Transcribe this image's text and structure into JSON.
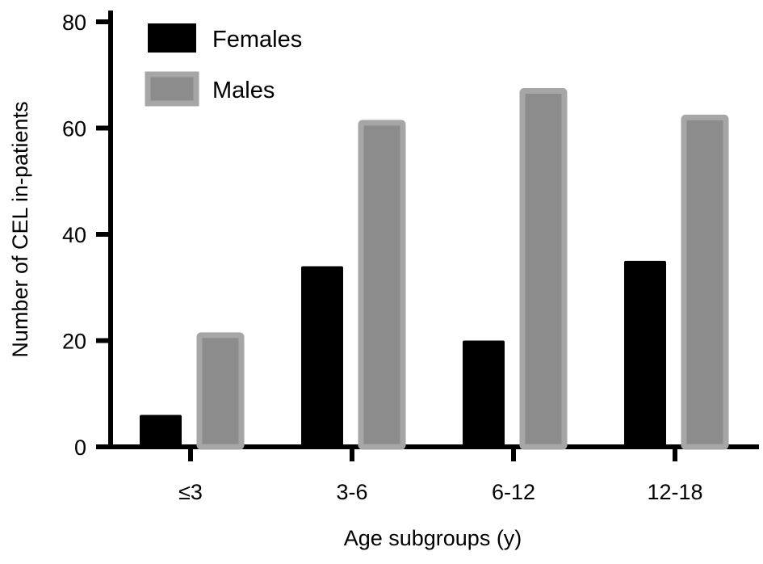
{
  "chart_data": {
    "type": "bar",
    "title": "",
    "xlabel": "Age subgroups (y)",
    "ylabel": "Number of CEL in-patients",
    "categories": [
      "≤3",
      "3-6",
      "6-12",
      "12-18"
    ],
    "series": [
      {
        "name": "Females",
        "values": [
          6,
          34,
          20,
          35
        ],
        "color": "#000000",
        "edge": "#000000"
      },
      {
        "name": "Males",
        "values": [
          21,
          61,
          67,
          62
        ],
        "color": "#8c8c8c",
        "edge": "#a6a6a6"
      }
    ],
    "ylim": [
      0,
      80
    ],
    "yticks": [
      0,
      20,
      40,
      60,
      80
    ],
    "grid": false,
    "legend_position": "top-left"
  }
}
